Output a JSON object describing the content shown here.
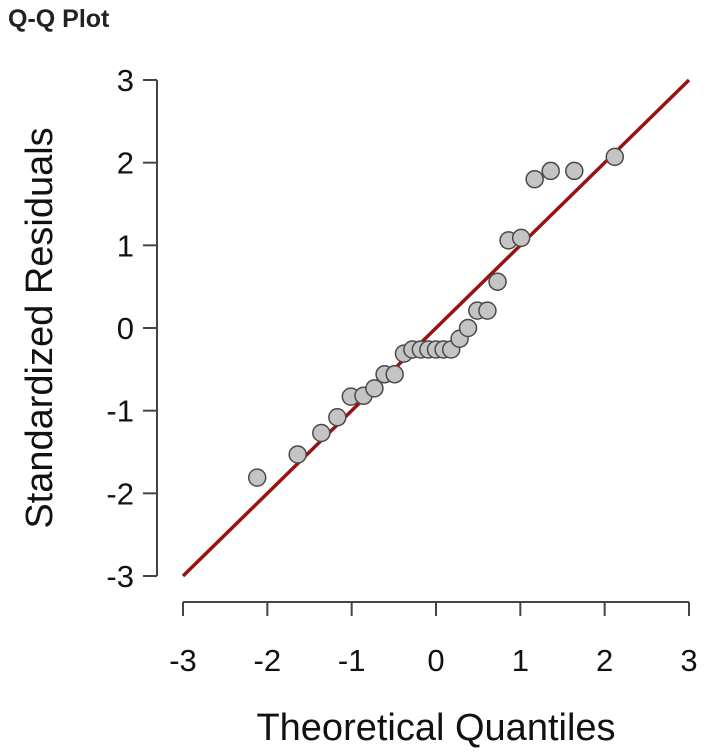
{
  "title": "Q-Q Plot",
  "chart_data": {
    "type": "scatter",
    "title": "Q-Q Plot",
    "xlabel": "Theoretical Quantiles",
    "ylabel": "Standardized Residuals",
    "xlim": [
      -3,
      3
    ],
    "ylim": [
      -3,
      3
    ],
    "xticks": [
      -3,
      -2,
      -1,
      0,
      1,
      2,
      3
    ],
    "yticks": [
      -3,
      -2,
      -1,
      0,
      1,
      2,
      3
    ],
    "xtick_labels": [
      "-3",
      "-2",
      "-1",
      "0",
      "1",
      "2",
      "3"
    ],
    "ytick_labels": [
      "-3",
      "-2",
      "-1",
      "0",
      "1",
      "2",
      "3"
    ],
    "grid": false,
    "legend": "none",
    "reference_line": {
      "from": [
        -3,
        -3
      ],
      "to": [
        3,
        3
      ],
      "color": "#9b1111"
    },
    "marker_color": "#c4c4c4",
    "marker_edge_color": "#4a4a4a",
    "x": [
      -2.12,
      -1.64,
      -1.36,
      -1.17,
      -1.01,
      -0.86,
      -0.73,
      -0.61,
      -0.49,
      -0.38,
      -0.28,
      -0.18,
      -0.09,
      0.0,
      0.09,
      0.18,
      0.28,
      0.38,
      0.49,
      0.61,
      0.73,
      0.86,
      1.01,
      1.17,
      1.36,
      1.64,
      2.12
    ],
    "y": [
      -1.81,
      -1.53,
      -1.27,
      -1.08,
      -0.83,
      -0.82,
      -0.73,
      -0.56,
      -0.56,
      -0.31,
      -0.26,
      -0.26,
      -0.26,
      -0.26,
      -0.26,
      -0.26,
      -0.13,
      0.0,
      0.21,
      0.21,
      0.56,
      1.06,
      1.09,
      1.8,
      1.9,
      1.9,
      2.07
    ]
  }
}
